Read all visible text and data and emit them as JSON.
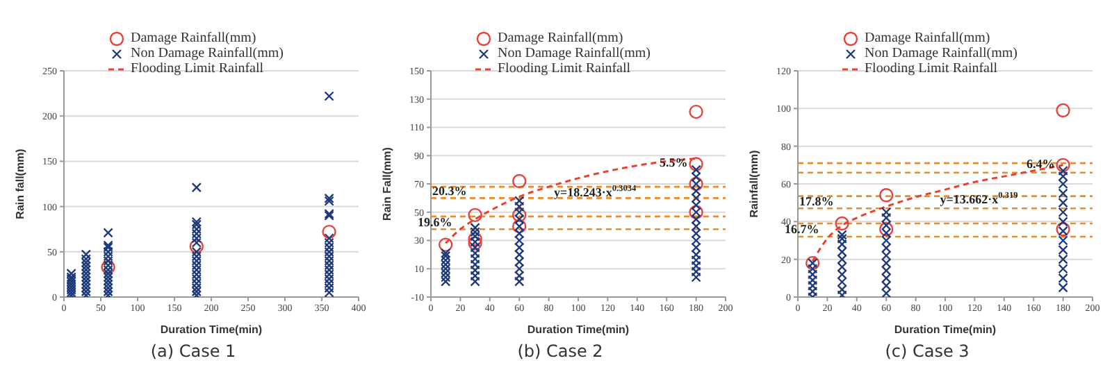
{
  "chart_data": [
    {
      "type": "scatter",
      "title": "(a) Case 1",
      "xlabel": "Duration Time(min)",
      "ylabel": "Rain fall(mm)",
      "xlim": [
        0,
        400
      ],
      "xticks": [
        0,
        50,
        100,
        150,
        200,
        250,
        300,
        350,
        400
      ],
      "ylim": [
        0,
        250
      ],
      "yticks": [
        0,
        50,
        100,
        150,
        200,
        250
      ],
      "grid": "y",
      "legend": "top",
      "series": [
        {
          "name": "Damage Rainfall(mm)",
          "type": "scatter",
          "marker": "circle",
          "color": "#e8413c",
          "x": [
            60,
            180,
            360
          ],
          "values": [
            33,
            56,
            72
          ]
        },
        {
          "name": "Non Damage Rainfall(mm)",
          "type": "scatter",
          "marker": "cross",
          "color": "#1f3a7a",
          "x": [
            10,
            10,
            10,
            10,
            10,
            10,
            10,
            10,
            10,
            30,
            30,
            30,
            30,
            30,
            30,
            30,
            30,
            30,
            30,
            30,
            30,
            60,
            60,
            60,
            60,
            60,
            60,
            60,
            60,
            60,
            60,
            60,
            60,
            60,
            60,
            60,
            180,
            180,
            180,
            180,
            180,
            180,
            180,
            180,
            180,
            180,
            180,
            180,
            180,
            180,
            180,
            180,
            180,
            180,
            360,
            360,
            360,
            360,
            360,
            360,
            360,
            360,
            360,
            360,
            360,
            360,
            360,
            360,
            360,
            360,
            360,
            360
          ],
          "values": [
            2,
            5,
            8,
            11,
            14,
            17,
            20,
            22,
            26,
            2,
            6,
            10,
            14,
            18,
            22,
            26,
            30,
            34,
            38,
            42,
            47,
            2,
            6,
            10,
            14,
            18,
            22,
            26,
            30,
            35,
            40,
            45,
            50,
            55,
            57,
            71,
            2,
            6,
            10,
            15,
            20,
            25,
            30,
            35,
            40,
            45,
            50,
            60,
            65,
            70,
            75,
            80,
            83,
            121,
            5,
            10,
            15,
            20,
            25,
            30,
            35,
            40,
            45,
            50,
            55,
            60,
            65,
            90,
            92,
            106,
            109,
            222
          ]
        },
        {
          "name": "Flooding Limit Rainfall",
          "type": "line",
          "line_style": "dashed",
          "marker": "none",
          "color": "#e8413c"
        }
      ]
    },
    {
      "type": "scatter",
      "title": "(b) Case 2",
      "xlabel": "Duration Time(min)",
      "ylabel": "Rain Fall(mm)",
      "xlim": [
        0,
        200
      ],
      "xticks": [
        0,
        20,
        40,
        60,
        80,
        100,
        120,
        140,
        160,
        180,
        200
      ],
      "ylim": [
        -10,
        150
      ],
      "yticks": [
        -10,
        10,
        30,
        50,
        70,
        90,
        110,
        130,
        150
      ],
      "grid": "y",
      "legend": "top",
      "series": [
        {
          "name": "Damage Rainfall(mm)",
          "type": "scatter",
          "marker": "circle",
          "color": "#e8413c",
          "x": [
            10,
            30,
            30,
            30,
            60,
            60,
            60,
            180,
            180,
            180,
            180
          ],
          "values": [
            27,
            48,
            31,
            28,
            72,
            48,
            40,
            121,
            84,
            70,
            50
          ]
        },
        {
          "name": "Non Damage Rainfall(mm)",
          "type": "scatter",
          "marker": "cross",
          "color": "#1f3a7a",
          "x": [
            10,
            10,
            10,
            10,
            10,
            10,
            10,
            10,
            30,
            30,
            30,
            30,
            30,
            30,
            30,
            30,
            30,
            30,
            30,
            60,
            60,
            60,
            60,
            60,
            60,
            60,
            60,
            60,
            60,
            60,
            60,
            60,
            180,
            180,
            180,
            180,
            180,
            180,
            180,
            180,
            180,
            180,
            180,
            180,
            180,
            180,
            180,
            180,
            180
          ],
          "values": [
            1,
            4,
            7,
            10,
            13,
            16,
            19,
            21,
            1,
            5,
            9,
            13,
            17,
            21,
            25,
            29,
            33,
            36,
            39,
            1,
            5,
            10,
            15,
            20,
            25,
            30,
            35,
            40,
            45,
            50,
            54,
            58,
            4,
            8,
            12,
            16,
            20,
            25,
            30,
            35,
            40,
            45,
            50,
            55,
            60,
            65,
            70,
            75,
            80
          ]
        },
        {
          "name": "Flooding Limit Rainfall",
          "type": "line",
          "line_style": "dashed",
          "marker": "none",
          "color": "#e8412e",
          "x": [
            10,
            20,
            30,
            40,
            60,
            80,
            100,
            120,
            140,
            160,
            180
          ],
          "values": [
            28,
            38,
            45,
            51,
            61,
            68,
            74,
            79,
            83,
            86,
            88
          ]
        }
      ],
      "ref_lines": [
        {
          "axis": "y",
          "value": 47,
          "color": "#f08a24",
          "line_style": "dashed"
        },
        {
          "axis": "y",
          "value": 38,
          "color": "#f08a24",
          "line_style": "dashed"
        },
        {
          "axis": "y",
          "value": 68,
          "color": "#f08a24",
          "line_style": "dashed"
        },
        {
          "axis": "y",
          "value": 60,
          "color": "#f08a24",
          "line_style": "dashed"
        }
      ],
      "annotations": [
        {
          "text": "19.6%",
          "x": 20,
          "y": 42
        },
        {
          "text": "20.3%",
          "x": 30,
          "y": 64
        },
        {
          "text": "5.5%",
          "x": 180,
          "y": 84
        },
        {
          "text": "y=18.243·x$^{0.3034}$",
          "x": 145,
          "y": 63
        }
      ]
    },
    {
      "type": "scatter",
      "title": "(c) Case 3",
      "xlabel": "Duration Time(min)",
      "ylabel": "Rainfall(mm)",
      "xlim": [
        0,
        200
      ],
      "xticks": [
        0,
        20,
        40,
        60,
        80,
        100,
        120,
        140,
        160,
        180,
        200
      ],
      "ylim": [
        0,
        120
      ],
      "yticks": [
        0,
        20,
        40,
        60,
        80,
        100,
        120
      ],
      "grid": "y",
      "legend": "top",
      "series": [
        {
          "name": "Damage Rainfall(mm)",
          "type": "scatter",
          "marker": "circle",
          "color": "#e8413c",
          "x": [
            10,
            30,
            60,
            60,
            180,
            180,
            180
          ],
          "values": [
            18,
            39,
            54,
            36,
            99,
            70,
            36
          ]
        },
        {
          "name": "Non Damage Rainfall(mm)",
          "type": "scatter",
          "marker": "cross",
          "color": "#1f3a7a",
          "x": [
            10,
            10,
            10,
            10,
            10,
            10,
            10,
            30,
            30,
            30,
            30,
            30,
            30,
            30,
            30,
            30,
            30,
            60,
            60,
            60,
            60,
            60,
            60,
            60,
            60,
            60,
            60,
            60,
            60,
            180,
            180,
            180,
            180,
            180,
            180,
            180,
            180,
            180,
            180,
            180,
            180,
            180,
            180
          ],
          "values": [
            0,
            3,
            6,
            9,
            12,
            15,
            18,
            1,
            4,
            8,
            12,
            16,
            20,
            24,
            28,
            31,
            33,
            2,
            6,
            10,
            14,
            18,
            22,
            26,
            30,
            34,
            38,
            42,
            45,
            5,
            10,
            15,
            20,
            25,
            30,
            35,
            40,
            45,
            50,
            55,
            60,
            64,
            67
          ]
        },
        {
          "name": "Flooding Limit Rainfall",
          "type": "line",
          "line_style": "dashed",
          "marker": "none",
          "color": "#e8412e",
          "x": [
            10,
            20,
            30,
            40,
            60,
            80,
            100,
            120,
            140,
            160,
            180
          ],
          "values": [
            19,
            31,
            38,
            42,
            48,
            53,
            57,
            61,
            64,
            67,
            70
          ]
        }
      ],
      "ref_lines": [
        {
          "axis": "y",
          "value": 39,
          "color": "#f08a24",
          "line_style": "dashed"
        },
        {
          "axis": "y",
          "value": 32,
          "color": "#f08a24",
          "line_style": "dashed"
        },
        {
          "axis": "y",
          "value": 53.5,
          "color": "#f08a24",
          "line_style": "dashed"
        },
        {
          "axis": "y",
          "value": 47,
          "color": "#f08a24",
          "line_style": "dashed"
        },
        {
          "axis": "y",
          "value": 71,
          "color": "#f08a24",
          "line_style": "dashed"
        },
        {
          "axis": "y",
          "value": 66,
          "color": "#f08a24",
          "line_style": "dashed"
        }
      ],
      "annotations": [
        {
          "text": "16.7%",
          "x": 20,
          "y": 35.5
        },
        {
          "text": "17.8%",
          "x": 30,
          "y": 50
        },
        {
          "text": "6.4%",
          "x": 180,
          "y": 70
        },
        {
          "text": "y=13.662·x$^{0.319}$",
          "x": 155,
          "y": 51
        }
      ]
    }
  ]
}
